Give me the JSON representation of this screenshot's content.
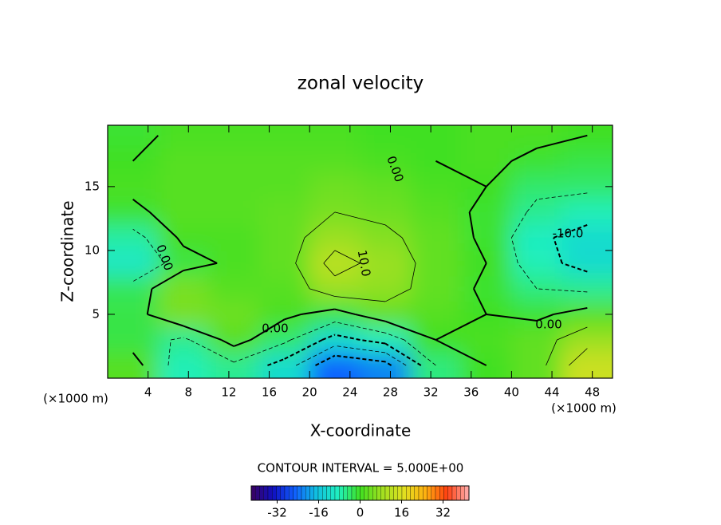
{
  "chart_data": {
    "type": "contour",
    "title": "zonal velocity",
    "x_label": "X-coordinate",
    "y_label": "Z-coordinate",
    "x_unit": "(×1000 m)",
    "y_unit": "(×1000 m)",
    "xlim": [
      0,
      50
    ],
    "ylim": [
      0,
      19.8
    ],
    "xticks": [
      4,
      8,
      12,
      16,
      20,
      24,
      28,
      32,
      36,
      40,
      44,
      48
    ],
    "yticks": [
      5,
      10,
      15
    ],
    "x": [
      2.5,
      7.5,
      12.5,
      17.5,
      22.5,
      27.5,
      32.5,
      37.5,
      42.5,
      47.5
    ],
    "y": [
      1,
      3,
      5,
      7,
      9,
      11,
      13,
      15,
      17,
      19
    ],
    "z": [
      [
        2,
        -8,
        -6,
        -12,
        -25,
        -22,
        -5,
        0,
        3,
        14
      ],
      [
        -2,
        -6,
        2,
        -4,
        -12,
        -8,
        0,
        1,
        3,
        8
      ],
      [
        -2,
        5,
        4,
        1,
        -2,
        3,
        2,
        0,
        -1,
        2
      ],
      [
        -3,
        5,
        2,
        2,
        8,
        7,
        3,
        -1,
        -5,
        -6
      ],
      [
        -10,
        -2,
        1,
        3,
        12,
        8,
        3,
        0,
        -8,
        -12
      ],
      [
        -7,
        1,
        1,
        3,
        8,
        6,
        3,
        -1,
        -9,
        -12
      ],
      [
        -1,
        2,
        2,
        3,
        5,
        4,
        2,
        -1,
        -6,
        -8
      ],
      [
        1,
        2,
        2,
        2,
        4,
        3,
        1,
        0,
        -4,
        -4
      ],
      [
        0,
        2,
        2,
        2,
        2,
        1,
        0,
        1,
        -1,
        -2
      ],
      [
        -1,
        1,
        1,
        1,
        1,
        0,
        0,
        1,
        1,
        0
      ]
    ],
    "contour_interval": 5,
    "contour_interval_label": "CONTOUR INTERVAL = 5.000E+00",
    "contour_labels": [
      "0.00",
      "0.00",
      "10.0",
      "0.00",
      "-10.0",
      "0.00"
    ],
    "clim": [
      -42,
      42
    ],
    "colorbar_ticks": [
      -32,
      -16,
      0,
      16,
      32
    ],
    "colormap": [
      "#3a0060",
      "#1010c0",
      "#1060ff",
      "#10c0e0",
      "#20f0c0",
      "#40e020",
      "#a0e020",
      "#e0e020",
      "#ffb010",
      "#ff4010",
      "#ffb0b0"
    ]
  }
}
